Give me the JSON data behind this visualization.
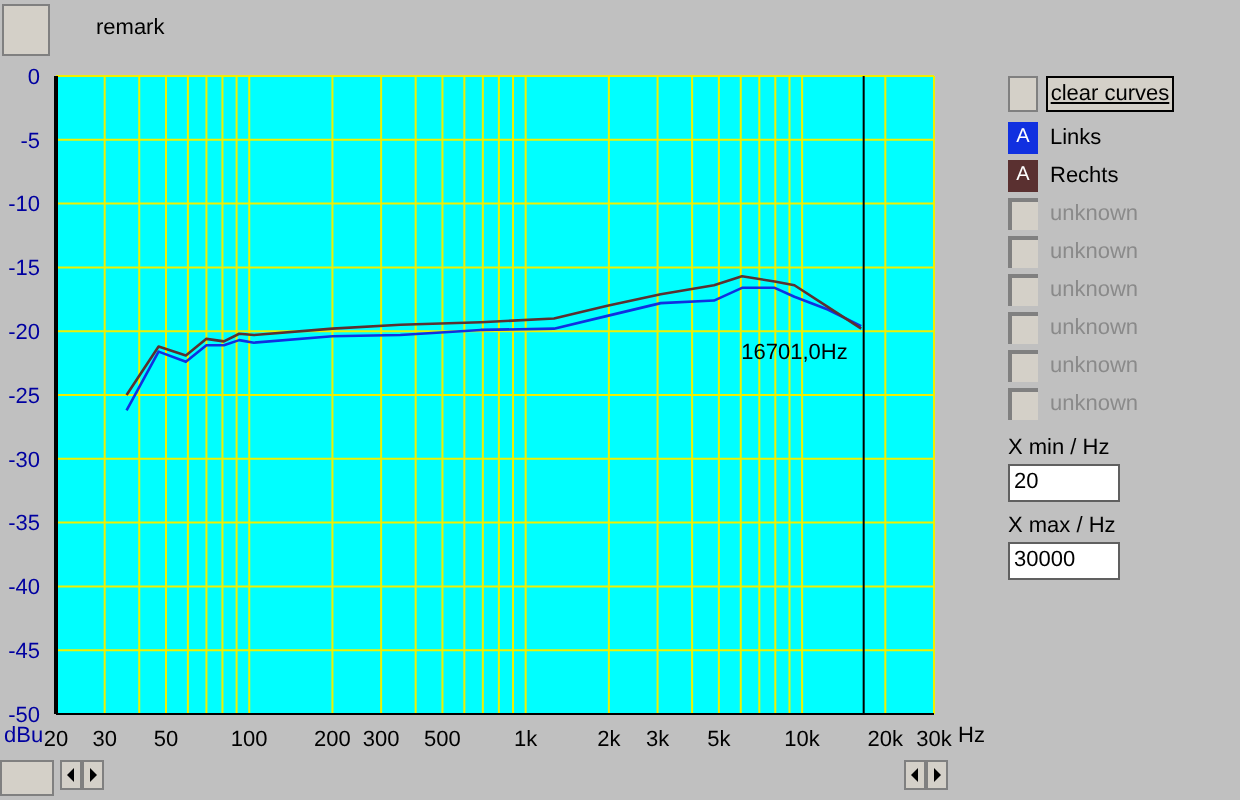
{
  "chart_data": {
    "type": "line",
    "xlabel": "Hz",
    "ylabel": "dBu",
    "log": "x",
    "grid": true,
    "legend": "right",
    "line_style": "solid",
    "marker": "none",
    "xlim": [
      20,
      30000
    ],
    "xticks": [
      20,
      30,
      {
        "value": 40,
        "label": null
      },
      50,
      {
        "value": 60,
        "label": null
      },
      {
        "value": 70,
        "label": null
      },
      {
        "value": 80,
        "label": null
      },
      {
        "value": 90,
        "label": null
      },
      100,
      200,
      300,
      {
        "value": 400,
        "label": null
      },
      500,
      {
        "value": 600,
        "label": null
      },
      {
        "value": 700,
        "label": null
      },
      {
        "value": 800,
        "label": null
      },
      {
        "value": 900,
        "label": null
      },
      {
        "value": 1000,
        "label": "1k"
      },
      {
        "value": 2000,
        "label": "2k"
      },
      {
        "value": 3000,
        "label": "3k"
      },
      {
        "value": 4000,
        "label": null
      },
      {
        "value": 5000,
        "label": "5k"
      },
      {
        "value": 6000,
        "label": null
      },
      {
        "value": 7000,
        "label": null
      },
      {
        "value": 8000,
        "label": null
      },
      {
        "value": 9000,
        "label": null
      },
      {
        "value": 10000,
        "label": "10k"
      },
      {
        "value": 20000,
        "label": "20k"
      },
      {
        "value": 30000,
        "label": "30k"
      }
    ],
    "ylim": [
      -50,
      0
    ],
    "yticks": [
      0,
      -5,
      -10,
      -15,
      -20,
      -25,
      -30,
      -35,
      -40,
      -45,
      -50
    ],
    "series": [
      {
        "name": "Links",
        "color": "#1030e0",
        "x": [
          36,
          47,
          59,
          70,
          81,
          92,
          104,
          200,
          352,
          688,
          1266,
          1975,
          3080,
          4800,
          6060,
          7960,
          9380,
          12380,
          16360
        ],
        "values": [
          -26.2,
          -21.6,
          -22.4,
          -21.1,
          -21.1,
          -20.7,
          -20.9,
          -20.4,
          -20.3,
          -19.9,
          -19.8,
          -18.8,
          -17.8,
          -17.6,
          -16.6,
          -16.6,
          -17.3,
          -18.3,
          -19.6
        ]
      },
      {
        "name": "Rechts",
        "color": "#5a3030",
        "x": [
          36,
          47,
          59,
          70,
          81,
          92,
          104,
          200,
          352,
          688,
          1266,
          1975,
          3080,
          4800,
          6060,
          7960,
          9380,
          12380,
          16360
        ],
        "values": [
          -25.0,
          -21.2,
          -21.9,
          -20.6,
          -20.8,
          -20.2,
          -20.3,
          -19.8,
          -19.5,
          -19.3,
          -19.0,
          -18.0,
          -17.1,
          -16.4,
          -15.7,
          -16.1,
          -16.4,
          -18.1,
          -19.8
        ]
      }
    ],
    "ref_lines": [
      {
        "axis": "x",
        "value": 16701,
        "label": "16701,0Hz",
        "color": "#000000"
      }
    ],
    "annotations": [
      "remark",
      "clear curves",
      "unknown",
      "unknown",
      "unknown",
      "unknown",
      "unknown",
      "unknown",
      "X min / Hz",
      "20",
      "X max / Hz",
      "30000",
      "A",
      "A"
    ]
  }
}
